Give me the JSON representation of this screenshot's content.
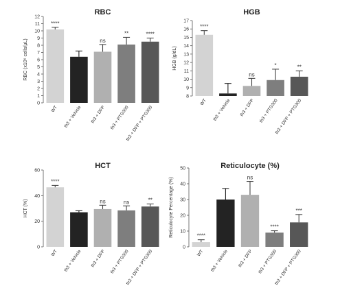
{
  "chart_data": [
    {
      "type": "bar",
      "title": "RBC",
      "ylabel": "RBC (x10⁶ cells/μL)",
      "ylim": [
        0,
        12
      ],
      "yticks": [
        0,
        1,
        2,
        3,
        4,
        5,
        6,
        7,
        8,
        9,
        10,
        11,
        12
      ],
      "categories": [
        "WT",
        "th3 + Vehicle",
        "th3 + DFP",
        "th3 + PTG300",
        "th3 + DFP + PTG300"
      ],
      "values": [
        10.2,
        6.4,
        7.1,
        8.1,
        8.5
      ],
      "errors": [
        0.3,
        0.8,
        1.0,
        1.0,
        0.5
      ],
      "significance": [
        "****",
        "",
        "ns",
        "**",
        "****"
      ],
      "colors": [
        "#d3d3d3",
        "#232323",
        "#b0b0b0",
        "#7e7e7e",
        "#575757"
      ]
    },
    {
      "type": "bar",
      "title": "HGB",
      "ylabel": "HGB (g/dL)",
      "ylim": [
        8,
        17
      ],
      "yticks": [
        8,
        9,
        10,
        11,
        12,
        13,
        14,
        15,
        16,
        17
      ],
      "categories": [
        "WT",
        "th3 + Vehicle",
        "th3 + DFP",
        "th3 + PTG300",
        "th3 + DFP + PTG300"
      ],
      "values": [
        15.3,
        8.3,
        9.2,
        9.9,
        10.3
      ],
      "errors": [
        0.5,
        1.2,
        0.9,
        1.3,
        0.7
      ],
      "significance": [
        "****",
        "",
        "ns",
        "*",
        "**"
      ],
      "colors": [
        "#d3d3d3",
        "#232323",
        "#b0b0b0",
        "#7e7e7e",
        "#575757"
      ]
    },
    {
      "type": "bar",
      "title": "HCT",
      "ylabel": "HCT (%)",
      "ylim": [
        0,
        60
      ],
      "yticks": [
        0,
        20,
        40,
        60
      ],
      "categories": [
        "WT",
        "th3 + Vehicle",
        "th3 + DFP",
        "th3 + PTG300",
        "th3 + DFP + PTG300"
      ],
      "values": [
        46.5,
        27.0,
        29.5,
        28.5,
        31.5
      ],
      "errors": [
        1.5,
        1.2,
        3.0,
        3.5,
        2.0
      ],
      "significance": [
        "****",
        "",
        "ns",
        "ns",
        "**"
      ],
      "colors": [
        "#d3d3d3",
        "#232323",
        "#b0b0b0",
        "#7e7e7e",
        "#575757"
      ]
    },
    {
      "type": "bar",
      "title": "Reticulocyte (%)",
      "ylabel": "Reticulocyte Percentage (%)",
      "ylim": [
        0,
        50
      ],
      "yticks": [
        0,
        10,
        20,
        30,
        40,
        50
      ],
      "categories": [
        "WT",
        "th3 + Vehicle",
        "th3 + DFP",
        "th3 + PTG300",
        "th3 + DFP + PTG300"
      ],
      "values": [
        3.0,
        30.0,
        33.0,
        9.0,
        15.5
      ],
      "errors": [
        1.5,
        7.0,
        8.5,
        1.2,
        5.0
      ],
      "significance": [
        "****",
        "",
        "ns",
        "****",
        "***"
      ],
      "colors": [
        "#d3d3d3",
        "#232323",
        "#b0b0b0",
        "#7e7e7e",
        "#575757"
      ]
    }
  ]
}
